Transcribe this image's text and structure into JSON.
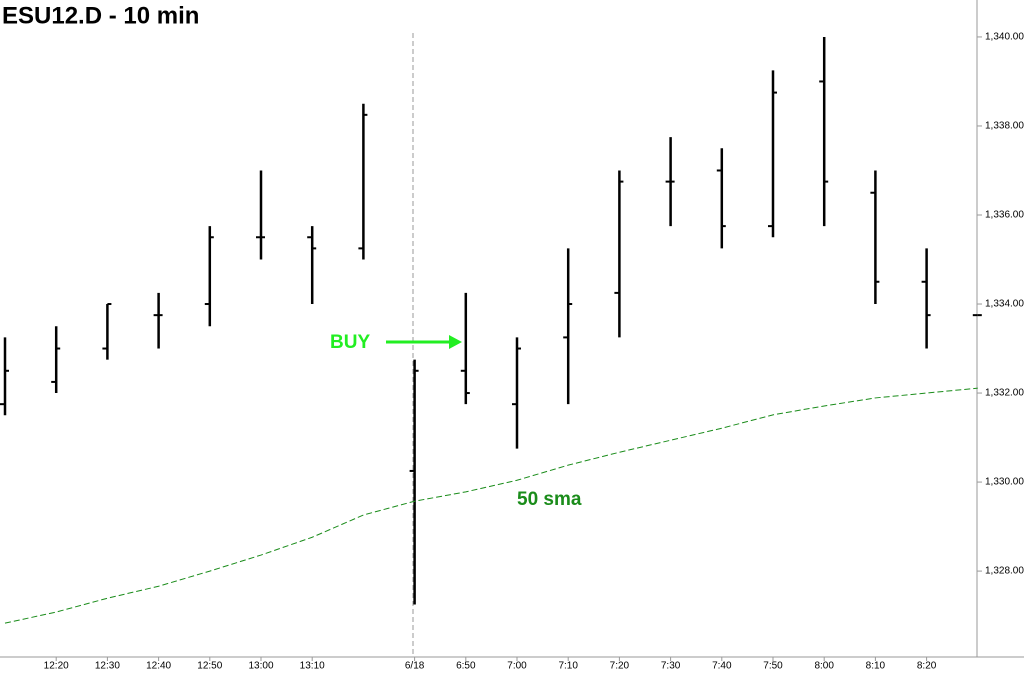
{
  "chart_data": {
    "type": "ohlc",
    "title": "ESU12.D - 10 min",
    "categories": [
      null,
      "12:20",
      "12:30",
      "12:40",
      "12:50",
      "13:00",
      "13:10",
      null,
      "6/18",
      "6:50",
      "7:00",
      "7:10",
      "7:20",
      "7:30",
      "7:40",
      "7:50",
      "8:00",
      "8:10",
      "8:20",
      null
    ],
    "open": [
      1331.75,
      1332.25,
      1333.0,
      1333.75,
      1334.0,
      1335.5,
      1335.5,
      1335.25,
      1330.25,
      1332.5,
      1331.75,
      1333.25,
      1334.25,
      1336.75,
      1337.0,
      1335.75,
      1339.0,
      1336.5,
      1334.5,
      1333.75
    ],
    "high": [
      1333.25,
      1333.5,
      1334.0,
      1334.25,
      1335.75,
      1337.0,
      1335.75,
      1338.5,
      1332.75,
      1334.25,
      1333.25,
      1335.25,
      1337.0,
      1337.75,
      1337.5,
      1339.25,
      1340.0,
      1337.0,
      1335.25,
      1333.75
    ],
    "low": [
      1331.5,
      1332.0,
      1332.75,
      1333.0,
      1333.5,
      1335.0,
      1334.0,
      1335.0,
      1327.25,
      1331.75,
      1330.75,
      1331.75,
      1333.25,
      1335.75,
      1335.25,
      1335.5,
      1335.75,
      1334.0,
      1333.0,
      1333.75
    ],
    "close": [
      1332.5,
      1333.0,
      1334.0,
      1333.75,
      1335.5,
      1335.5,
      1335.25,
      1338.25,
      1332.5,
      1332.0,
      1333.0,
      1334.0,
      1336.75,
      1336.75,
      1335.75,
      1338.75,
      1336.75,
      1334.5,
      1333.75,
      1333.75
    ],
    "color": "#000000",
    "sma": {
      "name": "50 sma",
      "color": "#1a8c1a",
      "values": [
        1326.83,
        1327.08,
        1327.39,
        1327.66,
        1328.0,
        1328.36,
        1328.76,
        1329.26,
        1329.57,
        1329.78,
        1330.04,
        1330.38,
        1330.67,
        1330.94,
        1331.21,
        1331.51,
        1331.71,
        1331.89,
        1332.0,
        1332.11
      ]
    },
    "annotation": {
      "text": "BUY",
      "color": "#22ee22"
    },
    "ylim": [
      1326.07,
      1340.83
    ],
    "yticks": [
      {
        "value": 1328,
        "label": "1,328.00"
      },
      {
        "value": 1330,
        "label": "1,330.00"
      },
      {
        "value": 1332,
        "label": "1,332.00"
      },
      {
        "value": 1334,
        "label": "1,334.00"
      },
      {
        "value": 1336,
        "label": "1,336.00"
      },
      {
        "value": 1338,
        "label": "1,338.00"
      },
      {
        "value": 1340,
        "label": "1,340.00"
      }
    ]
  }
}
